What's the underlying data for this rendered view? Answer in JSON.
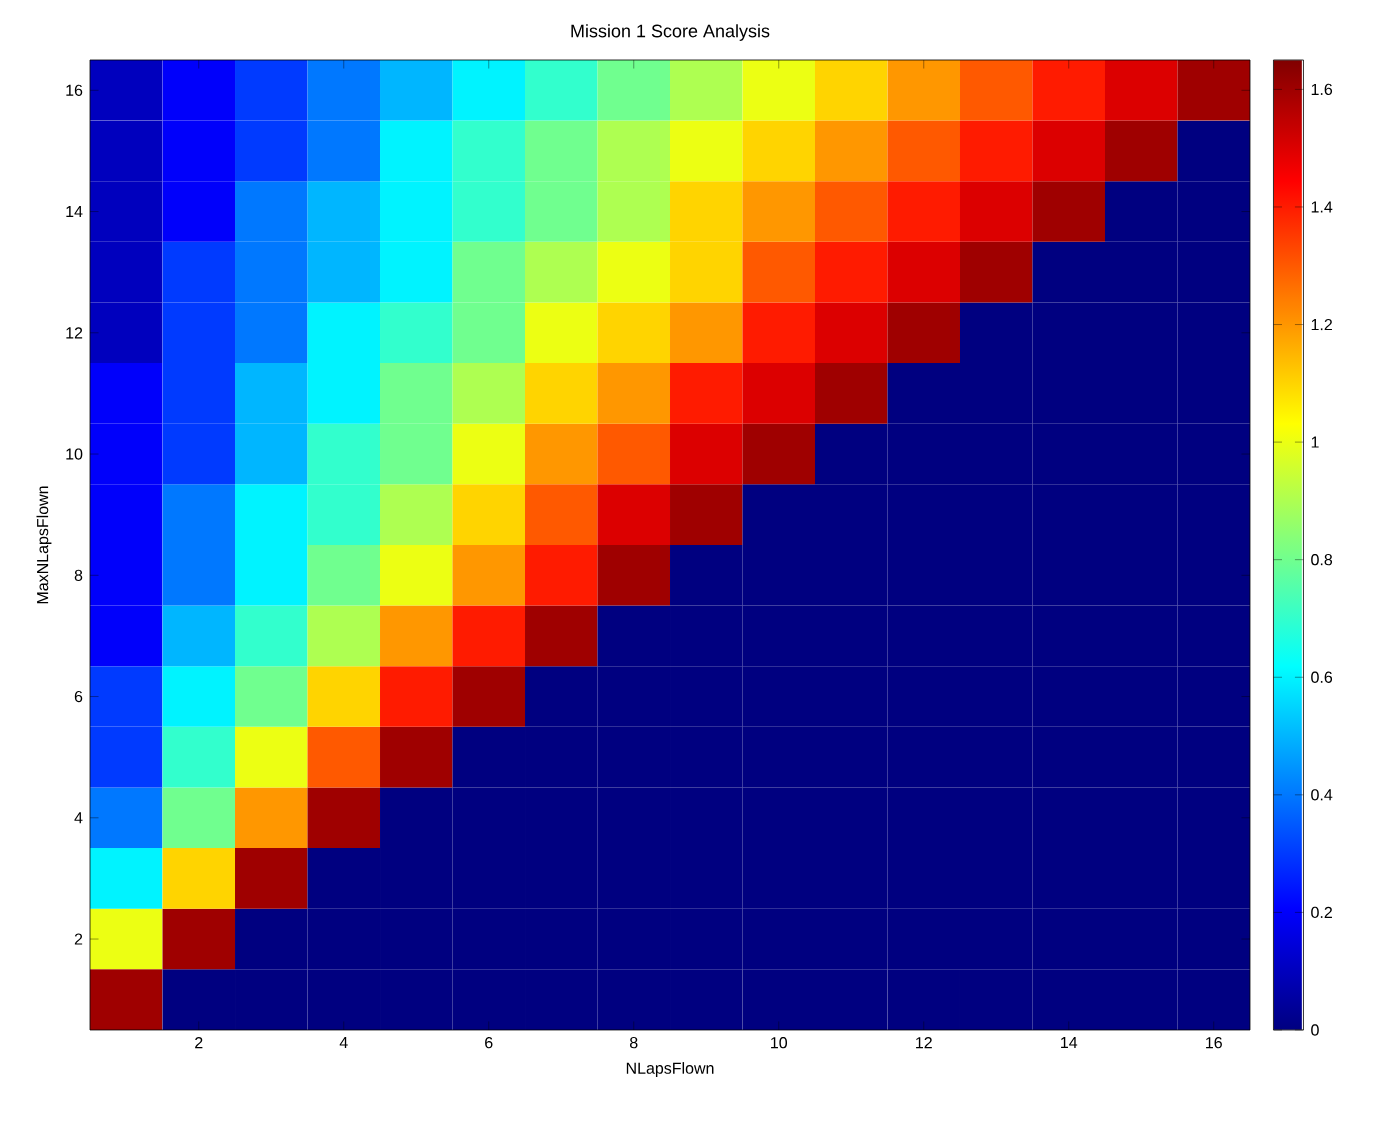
{
  "chart_data": {
    "type": "heatmap",
    "title": "Mission 1 Score Analysis",
    "xlabel": "NLapsFlown",
    "ylabel": "MaxNLapsFlown",
    "categories": [
      null,
      "2",
      null,
      "4",
      null,
      "6",
      null,
      "8",
      null,
      "10",
      null,
      "12",
      null,
      "14",
      null,
      "16"
    ],
    "y_categories": [
      "16",
      null,
      "14",
      null,
      "12",
      null,
      "10",
      null,
      "8",
      null,
      "6",
      null,
      "4",
      null,
      "2",
      null
    ],
    "cells": [
      [
        0.1,
        0.2,
        0.3,
        0.4,
        0.5,
        0.6,
        0.7,
        0.8,
        0.9,
        1.0,
        1.1,
        1.2,
        1.3,
        1.4,
        1.5,
        1.6
      ],
      [
        0.1,
        0.2,
        0.3,
        0.4,
        0.6,
        0.7,
        0.8,
        0.9,
        1.0,
        1.1,
        1.2,
        1.3,
        1.4,
        1.5,
        1.6,
        0
      ],
      [
        0.1,
        0.2,
        0.4,
        0.5,
        0.6,
        0.7,
        0.8,
        0.9,
        1.1,
        1.2,
        1.3,
        1.4,
        1.5,
        1.6,
        0,
        0
      ],
      [
        0.1,
        0.3,
        0.4,
        0.5,
        0.6,
        0.8,
        0.9,
        1.0,
        1.1,
        1.3,
        1.4,
        1.5,
        1.6,
        0,
        0,
        0
      ],
      [
        0.1,
        0.3,
        0.4,
        0.6,
        0.7,
        0.8,
        1.0,
        1.1,
        1.2,
        1.4,
        1.5,
        1.6,
        0,
        0,
        0,
        0
      ],
      [
        0.2,
        0.3,
        0.5,
        0.6,
        0.8,
        0.9,
        1.1,
        1.2,
        1.4,
        1.5,
        1.6,
        0,
        0,
        0,
        0,
        0
      ],
      [
        0.2,
        0.3,
        0.5,
        0.7,
        0.8,
        1.0,
        1.2,
        1.3,
        1.5,
        1.6,
        0,
        0,
        0,
        0,
        0,
        0
      ],
      [
        0.2,
        0.4,
        0.6,
        0.7,
        0.9,
        1.1,
        1.3,
        1.5,
        1.6,
        0,
        0,
        0,
        0,
        0,
        0,
        0
      ],
      [
        0.2,
        0.4,
        0.6,
        0.8,
        1.0,
        1.2,
        1.4,
        1.6,
        0,
        0,
        0,
        0,
        0,
        0,
        0,
        0
      ],
      [
        0.2,
        0.5,
        0.7,
        0.9,
        1.2,
        1.4,
        1.6,
        0,
        0,
        0,
        0,
        0,
        0,
        0,
        0,
        0
      ],
      [
        0.3,
        0.6,
        0.8,
        1.1,
        1.4,
        1.6,
        0,
        0,
        0,
        0,
        0,
        0,
        0,
        0,
        0,
        0
      ],
      [
        0.3,
        0.7,
        1.0,
        1.3,
        1.6,
        0,
        0,
        0,
        0,
        0,
        0,
        0,
        0,
        0,
        0,
        0
      ],
      [
        0.4,
        0.8,
        1.2,
        1.6,
        0,
        0,
        0,
        0,
        0,
        0,
        0,
        0,
        0,
        0,
        0,
        0
      ],
      [
        0.6,
        1.1,
        1.6,
        0,
        0,
        0,
        0,
        0,
        0,
        0,
        0,
        0,
        0,
        0,
        0,
        0
      ],
      [
        1.0,
        1.6,
        0,
        0,
        0,
        0,
        0,
        0,
        0,
        0,
        0,
        0,
        0,
        0,
        0,
        0
      ],
      [
        1.6,
        0,
        0,
        0,
        0,
        0,
        0,
        0,
        0,
        0,
        0,
        0,
        0,
        0,
        0,
        0
      ]
    ],
    "clim": [
      0,
      1.65
    ],
    "cticks": [
      0,
      0.2,
      0.4,
      0.6,
      0.8,
      1,
      1.2,
      1.4,
      1.6
    ]
  }
}
